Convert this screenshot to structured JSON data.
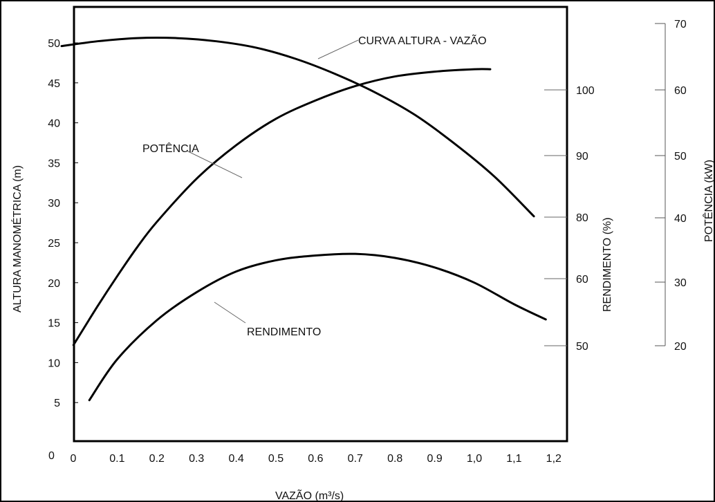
{
  "chart_data": {
    "type": "line",
    "title": "",
    "xlabel": "VAZÃO (m³/s)",
    "x_ticks": [
      "0",
      "0.1",
      "0.2",
      "0.3",
      "0.4",
      "0.5",
      "0.6",
      "0.7",
      "0.8",
      "0.9",
      "1,0",
      "1,1",
      "1,2"
    ],
    "xlim": [
      0,
      1.2
    ],
    "axes": {
      "head": {
        "label": "ALTURA MANOMÉTRICA (m)",
        "ticks": [
          "5",
          "10",
          "15",
          "20",
          "25",
          "30",
          "35",
          "40",
          "45",
          "50"
        ],
        "tick_values": [
          5,
          10,
          15,
          20,
          25,
          30,
          35,
          40,
          45,
          50
        ],
        "zero_label": "0",
        "ylim": [
          0,
          55
        ]
      },
      "efficiency": {
        "label": "RENDIMENTO (%)",
        "ticks": [
          "50",
          "60",
          "80",
          "90",
          "100"
        ]
      },
      "power": {
        "label": "POTÊNCIA (kW)",
        "ticks": [
          "20",
          "30",
          "40",
          "50",
          "60",
          "70"
        ]
      }
    },
    "series": [
      {
        "name": "CURVA ALTURA - VAZÃO",
        "axis": "head",
        "x": [
          -0.04,
          0.05,
          0.15,
          0.25,
          0.35,
          0.45,
          0.55,
          0.65,
          0.75,
          0.85,
          0.95,
          1.05,
          1.15
        ],
        "y": [
          49.6,
          50.2,
          50.6,
          50.6,
          50.2,
          49.4,
          48.0,
          46.1,
          43.8,
          41.0,
          37.4,
          33.3,
          28.3
        ]
      },
      {
        "name": "POTÊNCIA",
        "axis": "head",
        "x": [
          -0.01,
          0.05,
          0.1,
          0.15,
          0.2,
          0.3,
          0.4,
          0.5,
          0.6,
          0.7,
          0.8,
          0.9,
          1.0,
          1.04
        ],
        "y": [
          12.2,
          17.0,
          20.8,
          24.4,
          27.6,
          33.0,
          37.2,
          40.5,
          42.8,
          44.6,
          45.8,
          46.4,
          46.7,
          46.7
        ]
      },
      {
        "name": "RENDIMENTO",
        "axis": "head",
        "x": [
          0.03,
          0.1,
          0.2,
          0.3,
          0.4,
          0.5,
          0.6,
          0.7,
          0.8,
          0.9,
          1.0,
          1.1,
          1.18
        ],
        "y": [
          5.3,
          10.4,
          15.3,
          18.8,
          21.4,
          22.8,
          23.4,
          23.6,
          23.1,
          21.9,
          20.0,
          17.3,
          15.4
        ]
      }
    ],
    "annotations": [
      {
        "text": "CURVA ALTURA - VAZÃO",
        "series": "CURVA ALTURA - VAZÃO"
      },
      {
        "text": "POTÊNCIA",
        "series": "POTÊNCIA"
      },
      {
        "text": "RENDIMENTO",
        "series": "RENDIMENTO"
      }
    ],
    "grid": false
  }
}
